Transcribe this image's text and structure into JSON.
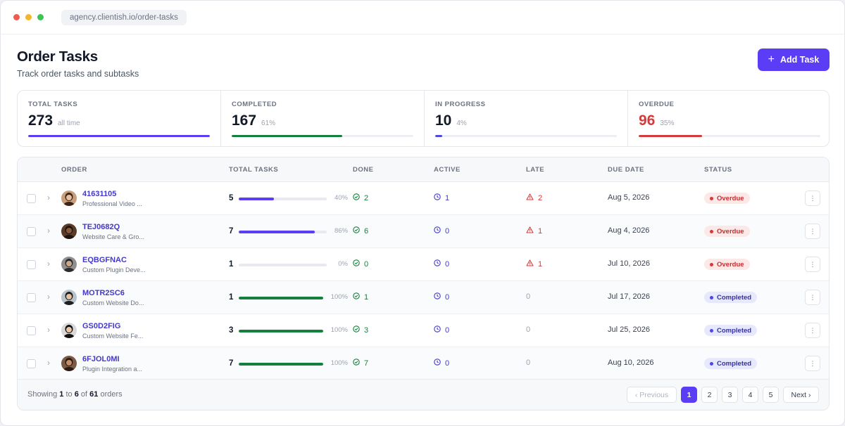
{
  "browser": {
    "url": "agency.clientish.io/order-tasks"
  },
  "page": {
    "title": "Order Tasks",
    "subtitle": "Track order tasks and subtasks",
    "add_button": "Add Task"
  },
  "stats": [
    {
      "label": "TOTAL TASKS",
      "value": "273",
      "sub": "all time",
      "fill": 1.0,
      "color": "#5b3df5"
    },
    {
      "label": "COMPLETED",
      "value": "167",
      "sub": "61%",
      "fill": 0.61,
      "color": "#15803d"
    },
    {
      "label": "IN PROGRESS",
      "value": "10",
      "sub": "4%",
      "fill": 0.04,
      "color": "#4f46e5"
    },
    {
      "label": "OVERDUE",
      "value": "96",
      "sub": "35%",
      "fill": 0.35,
      "color": "#d43a3a"
    }
  ],
  "table": {
    "headers": {
      "order": "ORDER",
      "total": "TOTAL TASKS",
      "done": "DONE",
      "active": "ACTIVE",
      "late": "LATE",
      "due": "DUE DATE",
      "status": "STATUS"
    },
    "rows": [
      {
        "id": "41631105",
        "desc": "Professional Video ...",
        "total": "5",
        "pct": "40%",
        "fill": 0.4,
        "done": "2",
        "active": "1",
        "late": "2",
        "due": "Aug 5, 2026",
        "status": "Overdue"
      },
      {
        "id": "TEJ0682Q",
        "desc": "Website Care & Gro...",
        "total": "7",
        "pct": "86%",
        "fill": 0.86,
        "done": "6",
        "active": "0",
        "late": "1",
        "due": "Aug 4, 2026",
        "status": "Overdue"
      },
      {
        "id": "EQBGFNAC",
        "desc": "Custom Plugin Deve...",
        "total": "1",
        "pct": "0%",
        "fill": 0.0,
        "done": "0",
        "active": "0",
        "late": "1",
        "due": "Jul 10, 2026",
        "status": "Overdue"
      },
      {
        "id": "MOTR2SC6",
        "desc": "Custom Website Do...",
        "total": "1",
        "pct": "100%",
        "fill": 1.0,
        "done": "1",
        "active": "0",
        "late": "0",
        "due": "Jul 17, 2026",
        "status": "Completed"
      },
      {
        "id": "GS0D2FIG",
        "desc": "Custom Website Fe...",
        "total": "3",
        "pct": "100%",
        "fill": 1.0,
        "done": "3",
        "active": "0",
        "late": "0",
        "due": "Jul 25, 2026",
        "status": "Completed"
      },
      {
        "id": "6FJOL0MI",
        "desc": "Plugin Integration a...",
        "total": "7",
        "pct": "100%",
        "fill": 1.0,
        "done": "7",
        "active": "0",
        "late": "0",
        "due": "Aug 10, 2026",
        "status": "Completed"
      }
    ]
  },
  "footer": {
    "showing_prefix": "Showing",
    "from": "1",
    "to_word": "to",
    "to": "6",
    "of_word": "of",
    "total": "61",
    "suffix": "orders",
    "prev": "‹ Previous",
    "pages": [
      "1",
      "2",
      "3",
      "4",
      "5"
    ],
    "current_page": "1",
    "next": "Next ›"
  },
  "colors": {
    "accent": "#5b3df5",
    "success": "#15803d",
    "danger": "#d43a3a",
    "info": "#4338ca"
  }
}
